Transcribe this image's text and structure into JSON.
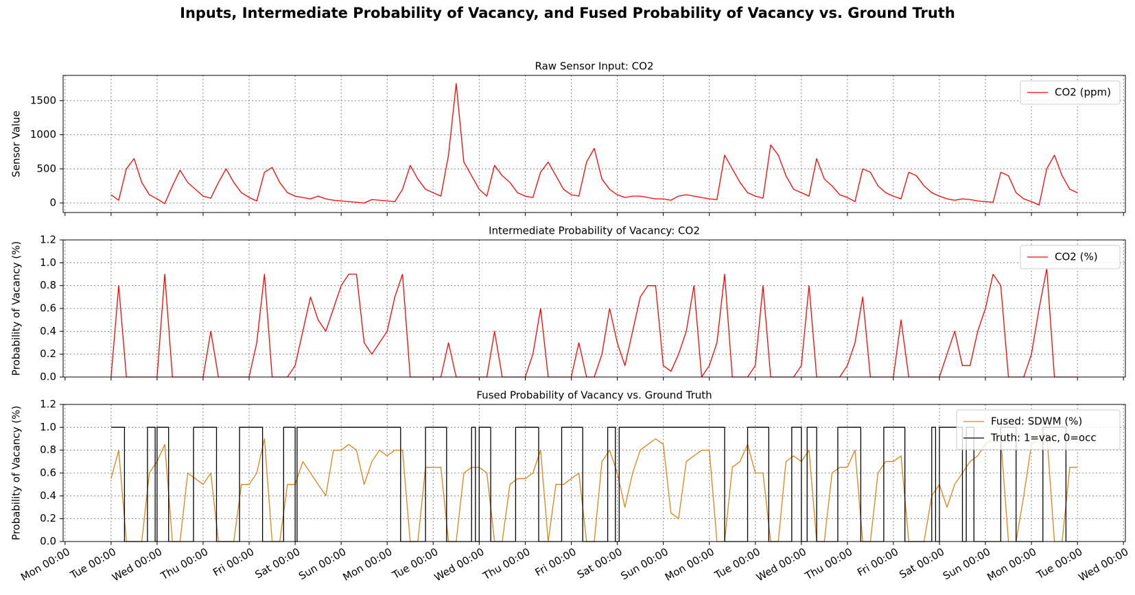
{
  "title": "Inputs, Intermediate Probability of Vacancy, and Fused Probability of Vacancy vs. Ground Truth",
  "chart_data": [
    {
      "type": "line",
      "title": "Raw Sensor Input: CO2",
      "ylabel": "Sensor Value",
      "x": [
        24,
        28,
        32,
        36,
        40,
        44,
        48,
        52,
        56,
        60,
        64,
        68,
        72,
        76,
        80,
        84,
        88,
        92,
        96,
        100,
        104,
        108,
        112,
        116,
        120,
        124,
        128,
        132,
        136,
        140,
        144,
        148,
        152,
        156,
        160,
        164,
        168,
        172,
        176,
        180,
        184,
        188,
        192,
        196,
        200,
        204,
        208,
        212,
        216,
        220,
        224,
        228,
        232,
        236,
        240,
        244,
        248,
        252,
        256,
        260,
        264,
        268,
        272,
        276,
        280,
        284,
        288,
        292,
        296,
        300,
        304,
        308,
        312,
        316,
        320,
        324,
        328,
        332,
        336,
        340,
        344,
        348,
        352,
        356,
        360,
        364,
        368,
        372,
        376,
        380,
        384,
        388,
        392,
        396,
        400,
        404,
        408,
        412,
        416,
        420,
        424,
        428,
        432,
        436,
        440,
        444,
        448,
        452,
        456,
        460,
        464,
        468,
        472,
        476,
        480,
        484,
        488,
        492,
        496,
        500,
        504,
        508,
        512,
        516,
        520,
        524,
        528
      ],
      "series": [
        {
          "name": "CO2 (ppm)",
          "color": "#ff0000",
          "values": [
            120,
            40,
            500,
            650,
            300,
            120,
            60,
            -10,
            250,
            480,
            300,
            200,
            100,
            70,
            300,
            500,
            300,
            150,
            80,
            30,
            450,
            520,
            300,
            150,
            100,
            80,
            60,
            100,
            60,
            40,
            30,
            20,
            10,
            0,
            50,
            40,
            30,
            20,
            200,
            550,
            350,
            200,
            150,
            100,
            700,
            1750,
            600,
            400,
            200,
            100,
            550,
            400,
            300,
            150,
            100,
            80,
            450,
            600,
            400,
            200,
            120,
            100,
            600,
            800,
            350,
            200,
            120,
            80,
            100,
            100,
            80,
            60,
            60,
            40,
            100,
            120,
            100,
            80,
            60,
            50,
            700,
            500,
            300,
            150,
            100,
            70,
            850,
            700,
            400,
            200,
            150,
            100,
            650,
            350,
            250,
            120,
            80,
            20,
            500,
            450,
            250,
            150,
            100,
            60,
            450,
            400,
            250,
            150,
            100,
            60,
            40,
            60,
            50,
            30,
            20,
            10,
            450,
            400,
            150,
            60,
            20,
            -30,
            500,
            700,
            400,
            200,
            150
          ]
        }
      ],
      "xlim": [
        -1,
        553
      ],
      "ylim": [
        -140,
        1870
      ],
      "yticks": [
        0,
        500,
        1000,
        1500
      ],
      "grid": true,
      "legend": "upper right"
    },
    {
      "type": "line",
      "title": "Intermediate Probability of Vacancy: CO2",
      "ylabel": "Probability of Vacancy (%)",
      "x": [
        24,
        28,
        32,
        36,
        40,
        44,
        48,
        52,
        56,
        60,
        64,
        68,
        72,
        76,
        80,
        84,
        88,
        92,
        96,
        100,
        104,
        108,
        112,
        116,
        120,
        124,
        128,
        132,
        136,
        140,
        144,
        148,
        152,
        156,
        160,
        164,
        168,
        172,
        176,
        180,
        184,
        188,
        192,
        196,
        200,
        204,
        208,
        212,
        216,
        220,
        224,
        228,
        232,
        236,
        240,
        244,
        248,
        252,
        256,
        260,
        264,
        268,
        272,
        276,
        280,
        284,
        288,
        292,
        296,
        300,
        304,
        308,
        312,
        316,
        320,
        324,
        328,
        332,
        336,
        340,
        344,
        348,
        352,
        356,
        360,
        364,
        368,
        372,
        376,
        380,
        384,
        388,
        392,
        396,
        400,
        404,
        408,
        412,
        416,
        420,
        424,
        428,
        432,
        436,
        440,
        444,
        448,
        452,
        456,
        460,
        464,
        468,
        472,
        476,
        480,
        484,
        488,
        492,
        496,
        500,
        504,
        508,
        512,
        516,
        520,
        524,
        528
      ],
      "series": [
        {
          "name": "CO2 (%)",
          "color": "#ff0000",
          "values": [
            0,
            0.8,
            0,
            0,
            0,
            0,
            0,
            0.9,
            0,
            0,
            0,
            0,
            0,
            0.4,
            0,
            0,
            0,
            0,
            0,
            0.3,
            0.9,
            0,
            0,
            0,
            0.1,
            0.4,
            0.7,
            0.5,
            0.4,
            0.6,
            0.8,
            0.9,
            0.9,
            0.3,
            0.2,
            0.3,
            0.4,
            0.7,
            0.9,
            0,
            0,
            0,
            0,
            0,
            0.3,
            0,
            0,
            0,
            0,
            0,
            0.4,
            0,
            0,
            0,
            0,
            0.2,
            0.6,
            0,
            0,
            0,
            0,
            0.3,
            0,
            0,
            0.2,
            0.6,
            0.3,
            0.1,
            0.4,
            0.7,
            0.8,
            0.8,
            0.1,
            0.05,
            0.2,
            0.4,
            0.8,
            0,
            0.1,
            0.3,
            0.9,
            0,
            0,
            0,
            0.1,
            0.8,
            0,
            0,
            0,
            0,
            0.1,
            0.8,
            0,
            0,
            0,
            0,
            0.1,
            0.3,
            0.7,
            0,
            0,
            0,
            0,
            0.5,
            0,
            0,
            0,
            0,
            0,
            0.2,
            0.4,
            0.1,
            0.1,
            0.4,
            0.6,
            0.9,
            0.8,
            0,
            0,
            0,
            0.2,
            0.6,
            0.95,
            0,
            0,
            0,
            0
          ]
        }
      ],
      "xlim": [
        -1,
        553
      ],
      "ylim": [
        0,
        1.2
      ],
      "yticks": [
        {
          "value": 0,
          "label": "0.0"
        },
        0.2,
        0.4,
        0.6,
        0.8,
        {
          "value": 1,
          "label": "1.0"
        },
        1.2
      ],
      "grid": true,
      "legend": "upper right"
    },
    {
      "type": "line",
      "title": "Fused Probability of Vacancy vs. Ground Truth",
      "ylabel": "Probability of Vacancy (%)",
      "x": [
        24,
        28,
        32,
        36,
        40,
        44,
        48,
        52,
        56,
        60,
        64,
        68,
        72,
        76,
        80,
        84,
        88,
        92,
        96,
        100,
        104,
        108,
        112,
        116,
        120,
        124,
        128,
        132,
        136,
        140,
        144,
        148,
        152,
        156,
        160,
        164,
        168,
        172,
        176,
        180,
        184,
        188,
        192,
        196,
        200,
        204,
        208,
        212,
        216,
        220,
        224,
        228,
        232,
        236,
        240,
        244,
        248,
        252,
        256,
        260,
        264,
        268,
        272,
        276,
        280,
        284,
        288,
        292,
        296,
        300,
        304,
        308,
        312,
        316,
        320,
        324,
        328,
        332,
        336,
        340,
        344,
        348,
        352,
        356,
        360,
        364,
        368,
        372,
        376,
        380,
        384,
        388,
        392,
        396,
        400,
        404,
        408,
        412,
        416,
        420,
        424,
        428,
        432,
        436,
        440,
        444,
        448,
        452,
        456,
        460,
        464,
        468,
        472,
        476,
        480,
        484,
        488,
        492,
        496,
        500,
        504,
        508,
        512,
        516,
        520,
        524,
        528
      ],
      "series": [
        {
          "name": "Fused: SDWM (%)",
          "color": "#e08214",
          "values": [
            0.55,
            0.8,
            0,
            0,
            0,
            0.6,
            0.7,
            0.85,
            0,
            0,
            0.6,
            0.55,
            0.5,
            0.6,
            0,
            0,
            0,
            0.5,
            0.5,
            0.6,
            0.9,
            0,
            0,
            0.5,
            0.5,
            0.7,
            0.6,
            0.5,
            0.4,
            0.8,
            0.8,
            0.85,
            0.8,
            0.5,
            0.7,
            0.8,
            0.75,
            0.8,
            0.8,
            0,
            0,
            0.65,
            0.65,
            0.65,
            0,
            0,
            0.6,
            0.65,
            0.65,
            0.6,
            0,
            0,
            0.5,
            0.55,
            0.55,
            0.6,
            0.8,
            0,
            0.5,
            0.5,
            0.55,
            0.6,
            0,
            0,
            0.7,
            0.8,
            0.6,
            0.3,
            0.6,
            0.8,
            0.85,
            0.9,
            0.85,
            0.25,
            0.2,
            0.7,
            0.75,
            0.8,
            0.8,
            0,
            0,
            0.65,
            0.7,
            0.85,
            0.6,
            0.6,
            0,
            0,
            0.7,
            0.75,
            0.7,
            0.8,
            0,
            0,
            0.6,
            0.65,
            0.65,
            0.8,
            0,
            0,
            0.6,
            0.7,
            0.7,
            0.75,
            0,
            0,
            0,
            0.4,
            0.5,
            0.3,
            0.5,
            0.6,
            0.7,
            0.75,
            0.85,
            0.9,
            0.9,
            0,
            0,
            0.4,
            0.85,
            0.9,
            0.95,
            0,
            0,
            0.65,
            0.65
          ]
        },
        {
          "name": "Truth: 1=vac, 0=occ",
          "color": "#000000",
          "step": "post",
          "x": [
            24,
            31,
            43,
            47,
            48,
            54,
            67,
            79,
            91,
            103,
            114,
            120,
            121,
            175,
            188,
            199,
            212,
            214,
            216,
            222,
            235,
            247,
            259,
            270,
            283,
            287,
            289,
            344,
            356,
            367,
            379,
            384,
            387,
            392,
            403,
            415,
            427,
            438,
            452,
            454,
            456,
            468,
            470,
            474,
            488,
            496,
            510,
            522,
            528
          ],
          "values": [
            1,
            0,
            1,
            0,
            1,
            0,
            1,
            0,
            1,
            0,
            1,
            0,
            1,
            0,
            1,
            0,
            1,
            0,
            1,
            0,
            1,
            0,
            1,
            0,
            1,
            0,
            1,
            0,
            1,
            0,
            1,
            0,
            1,
            0,
            1,
            0,
            1,
            0,
            1,
            0,
            1,
            0,
            1,
            0,
            1,
            0,
            1,
            0,
            0
          ]
        }
      ],
      "xlim": [
        -1,
        553
      ],
      "ylim": [
        0,
        1.2
      ],
      "yticks": [
        {
          "value": 0,
          "label": "0.0"
        },
        0.2,
        0.4,
        0.6,
        0.8,
        {
          "value": 1,
          "label": "1.0"
        },
        1.2
      ],
      "grid": true,
      "legend": "upper right",
      "xticks": [
        {
          "value": 0,
          "label": "Mon 00:00"
        },
        {
          "value": 24,
          "label": "Tue 00:00"
        },
        {
          "value": 48,
          "label": "Wed 00:00"
        },
        {
          "value": 72,
          "label": "Thu 00:00"
        },
        {
          "value": 96,
          "label": "Fri 00:00"
        },
        {
          "value": 120,
          "label": "Sat 00:00"
        },
        {
          "value": 144,
          "label": "Sun 00:00"
        },
        {
          "value": 168,
          "label": "Mon 00:00"
        },
        {
          "value": 192,
          "label": "Tue 00:00"
        },
        {
          "value": 216,
          "label": "Wed 00:00"
        },
        {
          "value": 240,
          "label": "Thu 00:00"
        },
        {
          "value": 264,
          "label": "Fri 00:00"
        },
        {
          "value": 288,
          "label": "Sat 00:00"
        },
        {
          "value": 312,
          "label": "Sun 00:00"
        },
        {
          "value": 336,
          "label": "Mon 00:00"
        },
        {
          "value": 360,
          "label": "Tue 00:00"
        },
        {
          "value": 384,
          "label": "Wed 00:00"
        },
        {
          "value": 408,
          "label": "Thu 00:00"
        },
        {
          "value": 432,
          "label": "Fri 00:00"
        },
        {
          "value": 456,
          "label": "Sat 00:00"
        },
        {
          "value": 480,
          "label": "Sun 00:00"
        },
        {
          "value": 504,
          "label": "Mon 00:00"
        },
        {
          "value": 528,
          "label": "Tue 00:00"
        },
        {
          "value": 552,
          "label": "Wed 00:00"
        }
      ]
    }
  ]
}
